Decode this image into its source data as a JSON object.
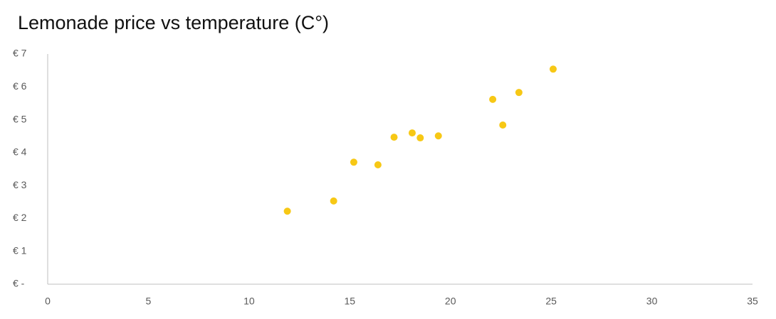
{
  "chart_data": {
    "type": "scatter",
    "title": "Lemonade price vs temperature (C°)",
    "x": [
      11.9,
      14.2,
      15.2,
      16.4,
      17.2,
      18.1,
      18.5,
      19.4,
      22.1,
      22.6,
      23.4,
      25.1
    ],
    "values": [
      2.22,
      2.53,
      3.71,
      3.63,
      4.47,
      4.6,
      4.45,
      4.51,
      5.62,
      4.84,
      5.83,
      6.54
    ],
    "color": "#f7c815",
    "xlim": [
      0,
      35
    ],
    "xticks": [
      0,
      5,
      10,
      15,
      20,
      25,
      30,
      35
    ],
    "ylim": [
      0,
      7
    ],
    "yticks": [
      {
        "value": 0,
        "label": "€ -"
      },
      {
        "value": 1,
        "label": "€ 1"
      },
      {
        "value": 2,
        "label": "€ 2"
      },
      {
        "value": 3,
        "label": "€ 3"
      },
      {
        "value": 4,
        "label": "€ 4"
      },
      {
        "value": 5,
        "label": "€ 5"
      },
      {
        "value": 6,
        "label": "€ 6"
      },
      {
        "value": 7,
        "label": "€ 7"
      }
    ],
    "grid": false
  }
}
